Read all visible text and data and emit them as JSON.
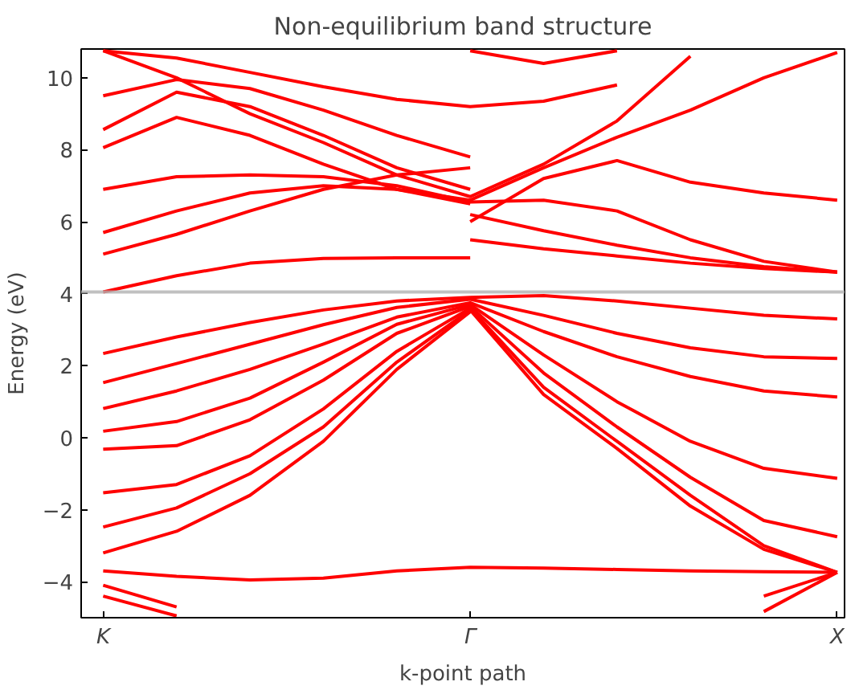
{
  "chart_data": {
    "type": "line",
    "title": "Non-equilibrium band structure",
    "xlabel": "k-point path",
    "ylabel": "Energy (eV)",
    "categories": [
      "K",
      null,
      null,
      null,
      null,
      "Γ",
      null,
      null,
      null,
      null,
      "X"
    ],
    "ylim": [
      -5,
      10.8
    ],
    "yticks": [
      -4,
      -2,
      0,
      2,
      4,
      6,
      8,
      10
    ],
    "line_style": "solid",
    "ref_lines": [
      {
        "axis": "y",
        "value": 4.05,
        "color": "#b0b0b0"
      }
    ],
    "series": [
      {
        "color": "#ff0000",
        "values": [
          2.34,
          2.8,
          3.2,
          3.55,
          3.8,
          3.9,
          3.95,
          3.8,
          3.6,
          3.4,
          3.3
        ]
      },
      {
        "color": "#ff0000",
        "values": [
          1.53,
          2.06,
          2.6,
          3.14,
          3.62,
          3.85,
          3.4,
          2.9,
          2.5,
          2.25,
          2.2
        ]
      },
      {
        "color": "#ff0000",
        "values": [
          0.81,
          1.3,
          1.9,
          2.6,
          3.35,
          3.75,
          2.95,
          2.25,
          1.7,
          1.3,
          1.13
        ]
      },
      {
        "color": "#ff0000",
        "values": [
          0.18,
          0.45,
          1.1,
          2.1,
          3.15,
          3.7,
          2.3,
          1.0,
          -0.1,
          -0.85,
          -1.13
        ]
      },
      {
        "color": "#ff0000",
        "values": [
          -0.32,
          -0.22,
          0.5,
          1.6,
          2.9,
          3.65,
          1.8,
          0.3,
          -1.1,
          -2.3,
          -2.75
        ]
      },
      {
        "color": "#ff0000",
        "values": [
          -1.53,
          -1.3,
          -0.5,
          0.8,
          2.4,
          3.6,
          1.4,
          -0.1,
          -1.6,
          -3.0,
          -3.74
        ]
      },
      {
        "color": "#ff0000",
        "values": [
          -2.48,
          -1.95,
          -1.0,
          0.3,
          2.1,
          3.55,
          1.2,
          -0.3,
          -1.9,
          -3.1,
          -3.74
        ]
      },
      {
        "color": "#ff0000",
        "values": [
          -3.2,
          -2.6,
          -1.6,
          -0.1,
          1.9,
          3.5,
          null,
          null,
          null,
          null,
          null
        ]
      },
      {
        "color": "#ff0000",
        "values": [
          -3.7,
          -3.85,
          -3.95,
          -3.9,
          -3.7,
          -3.6,
          -3.62,
          -3.66,
          -3.7,
          -3.72,
          -3.74
        ]
      },
      {
        "color": "#ff0000",
        "values": [
          -4.1,
          -4.7,
          null,
          null,
          null,
          null,
          null,
          null,
          null,
          null,
          null
        ]
      },
      {
        "color": "#ff0000",
        "values": [
          -4.4,
          -4.95,
          null,
          null,
          null,
          null,
          null,
          null,
          null,
          null,
          null
        ]
      },
      {
        "color": "#ff0000",
        "values": [
          null,
          null,
          null,
          null,
          null,
          null,
          null,
          null,
          null,
          -4.4,
          -3.74
        ]
      },
      {
        "color": "#ff0000",
        "values": [
          null,
          null,
          null,
          null,
          null,
          null,
          null,
          null,
          null,
          -4.83,
          -3.74
        ]
      },
      {
        "color": "#ff0000",
        "values": [
          4.05,
          4.5,
          4.85,
          4.98,
          5.0,
          5.0,
          null,
          null,
          null,
          null,
          null
        ]
      },
      {
        "color": "#ff0000",
        "values": [
          5.1,
          5.65,
          6.3,
          6.9,
          7.3,
          7.5,
          null,
          null,
          null,
          null,
          null
        ]
      },
      {
        "color": "#ff0000",
        "values": [
          5.7,
          6.3,
          6.8,
          7.0,
          6.9,
          6.6,
          7.5,
          8.35,
          9.1,
          10.0,
          10.7
        ]
      },
      {
        "color": "#ff0000",
        "values": [
          6.9,
          7.25,
          7.3,
          7.25,
          7.0,
          6.55,
          6.6,
          6.3,
          5.5,
          4.9,
          4.6
        ]
      },
      {
        "color": "#ff0000",
        "values": [
          8.06,
          8.9,
          8.4,
          7.6,
          6.9,
          6.5,
          null,
          null,
          null,
          null,
          null
        ]
      },
      {
        "color": "#ff0000",
        "values": [
          8.56,
          9.6,
          9.2,
          8.4,
          7.5,
          6.9,
          null,
          null,
          null,
          null,
          null
        ]
      },
      {
        "color": "#ff0000",
        "values": [
          9.5,
          9.95,
          9.7,
          9.1,
          8.4,
          7.8,
          null,
          null,
          null,
          null,
          null
        ]
      },
      {
        "color": "#ff0000",
        "values": [
          10.75,
          10.0,
          9.0,
          8.2,
          7.3,
          6.7,
          7.6,
          8.8,
          10.6,
          null,
          null
        ]
      },
      {
        "color": "#ff0000",
        "values": [
          10.75,
          10.55,
          10.15,
          9.75,
          9.4,
          9.2,
          9.35,
          9.8,
          null,
          null,
          null
        ]
      },
      {
        "color": "#ff0000",
        "values": [
          null,
          null,
          null,
          null,
          null,
          6.0,
          7.2,
          7.7,
          7.1,
          6.8,
          6.6
        ]
      },
      {
        "color": "#ff0000",
        "values": [
          null,
          null,
          null,
          null,
          null,
          6.2,
          5.75,
          5.35,
          5.0,
          4.75,
          4.6
        ]
      },
      {
        "color": "#ff0000",
        "values": [
          null,
          null,
          null,
          null,
          null,
          5.5,
          5.25,
          5.05,
          4.85,
          4.7,
          4.6
        ]
      },
      {
        "color": "#ff0000",
        "values": [
          null,
          null,
          null,
          null,
          null,
          10.75,
          10.4,
          10.75,
          null,
          null,
          null
        ]
      }
    ]
  }
}
